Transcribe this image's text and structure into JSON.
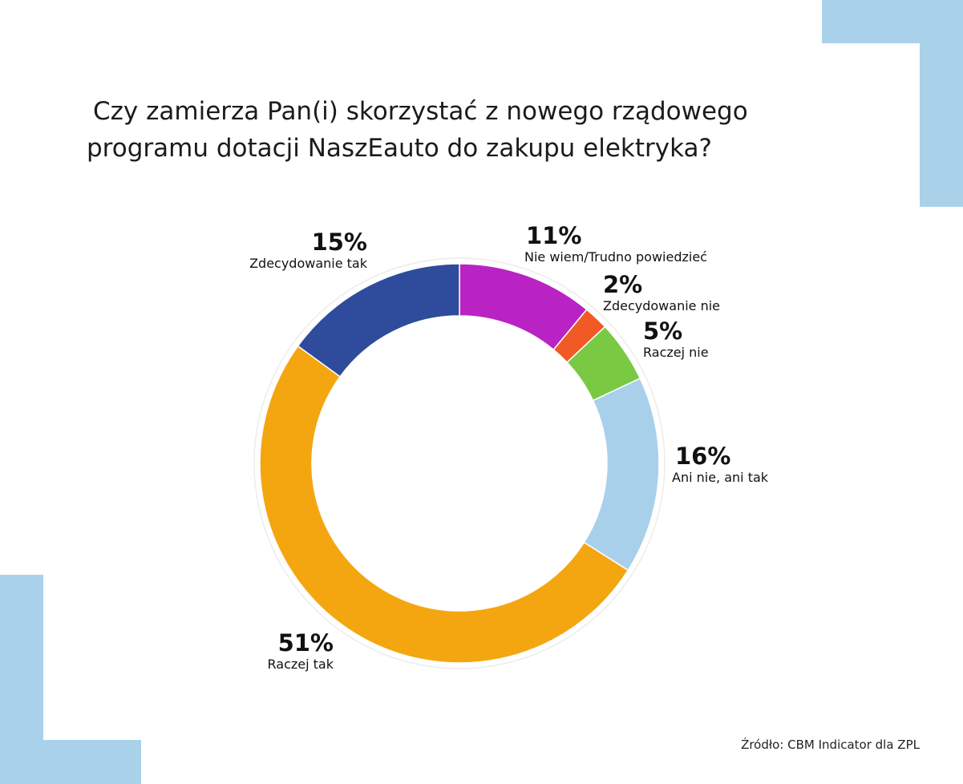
{
  "chart_data": {
    "type": "donut",
    "title_line1": "Czy zamierza Pan(i) skorzystać z nowego rządowego",
    "title_line2": "programu dotacji NaszEauto do zakupu elektryka?",
    "slices": [
      {
        "label": "Nie wiem/Trudno powiedzieć",
        "value": 11,
        "value_label": "11%",
        "color": "#b923c3"
      },
      {
        "label": "Zdecydowanie nie",
        "value": 2,
        "value_label": "2%",
        "color": "#f15a24"
      },
      {
        "label": "Raczej nie",
        "value": 5,
        "value_label": "5%",
        "color": "#7ac943"
      },
      {
        "label": "Ani nie, ani tak",
        "value": 16,
        "value_label": "16%",
        "color": "#a9d0ea"
      },
      {
        "label": "Raczej tak",
        "value": 51,
        "value_label": "51%",
        "color": "#f4a611"
      },
      {
        "label": "Zdecydowanie tak",
        "value": 15,
        "value_label": "15%",
        "color": "#2f4b9b"
      }
    ],
    "source": "Źródło: CBM Indicator dla ZPL"
  },
  "colors": {
    "accent_corners": "#a9d1ea"
  }
}
